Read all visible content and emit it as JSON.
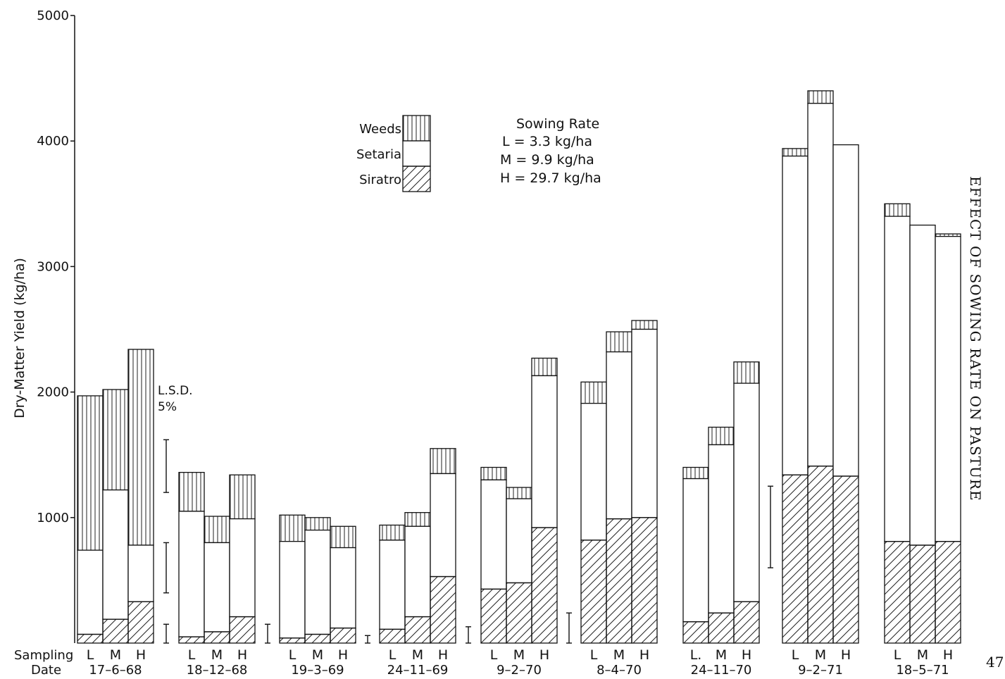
{
  "side_title": "EFFECT OF SOWING RATE ON PASTURE",
  "page_number": "47",
  "chart_data": {
    "type": "bar",
    "stacked": true,
    "ylabel": "Dry-Matter Yield (kg/ha)",
    "xlabel_line1": "Sampling",
    "xlabel_line2": "Date",
    "ylim": [
      0,
      5000
    ],
    "yticks": [
      1000,
      2000,
      3000,
      4000,
      5000
    ],
    "legend": {
      "position": "top-center",
      "entries": [
        {
          "label": "Weeds",
          "pattern": "vertical"
        },
        {
          "label": "Setaria",
          "pattern": "blank"
        },
        {
          "label": "Siratro",
          "pattern": "diagonal"
        }
      ]
    },
    "sowing_rate": {
      "title": "Sowing Rate",
      "lines": [
        "L = 3.3 kg/ha",
        "M = 9.9 kg/ha",
        "H = 29.7 kg/ha"
      ]
    },
    "lsd": {
      "label_line1": "L.S.D.",
      "label_line2": "5%"
    },
    "groups": [
      {
        "date": "17-6-68",
        "labels": [
          "L",
          "M",
          "H"
        ],
        "bars": [
          {
            "siratro": 70,
            "setaria": 740,
            "total": 1970
          },
          {
            "siratro": 190,
            "setaria": 1220,
            "total": 2020
          },
          {
            "siratro": 330,
            "setaria": 780,
            "total": 2340
          }
        ]
      },
      {
        "date": "18-12-68",
        "labels": [
          "L",
          "M",
          "H"
        ],
        "bars": [
          {
            "siratro": 50,
            "setaria": 1050,
            "total": 1360
          },
          {
            "siratro": 90,
            "setaria": 800,
            "total": 1010
          },
          {
            "siratro": 210,
            "setaria": 990,
            "total": 1340
          }
        ]
      },
      {
        "date": "19-3-69",
        "labels": [
          "L",
          "M",
          "H"
        ],
        "bars": [
          {
            "siratro": 40,
            "setaria": 810,
            "total": 1020
          },
          {
            "siratro": 70,
            "setaria": 900,
            "total": 1000
          },
          {
            "siratro": 120,
            "setaria": 760,
            "total": 930
          }
        ]
      },
      {
        "date": "24-11-69",
        "labels": [
          "L",
          "M",
          "H"
        ],
        "bars": [
          {
            "siratro": 110,
            "setaria": 820,
            "total": 940
          },
          {
            "siratro": 210,
            "setaria": 930,
            "total": 1040
          },
          {
            "siratro": 530,
            "setaria": 1350,
            "total": 1550
          }
        ]
      },
      {
        "date": "9-2-70",
        "labels": [
          "L",
          "M",
          "H"
        ],
        "bars": [
          {
            "siratro": 430,
            "setaria": 1300,
            "total": 1400
          },
          {
            "siratro": 480,
            "setaria": 1150,
            "total": 1240
          },
          {
            "siratro": 920,
            "setaria": 2130,
            "total": 2270
          }
        ]
      },
      {
        "date": "8-4-70",
        "labels": [
          "L",
          "M",
          "H"
        ],
        "bars": [
          {
            "siratro": 820,
            "setaria": 1910,
            "total": 2080
          },
          {
            "siratro": 990,
            "setaria": 2320,
            "total": 2480
          },
          {
            "siratro": 1000,
            "setaria": 2500,
            "total": 2570
          }
        ]
      },
      {
        "date": "24-11-70",
        "labels": [
          "L.",
          "M",
          "H"
        ],
        "bars": [
          {
            "siratro": 170,
            "setaria": 1310,
            "total": 1400
          },
          {
            "siratro": 240,
            "setaria": 1580,
            "total": 1720
          },
          {
            "siratro": 330,
            "setaria": 2070,
            "total": 2240
          }
        ]
      },
      {
        "date": "9-2-71",
        "labels": [
          "L",
          "M",
          "H"
        ],
        "bars": [
          {
            "siratro": 1340,
            "setaria": 3880,
            "total": 3940
          },
          {
            "siratro": 1410,
            "setaria": 4300,
            "total": 4400
          },
          {
            "siratro": 1330,
            "setaria": 3970,
            "total": 3970
          }
        ]
      },
      {
        "date": "18-5-71",
        "labels": [
          "L",
          "M",
          "H"
        ],
        "bars": [
          {
            "siratro": 810,
            "setaria": 3400,
            "total": 3500
          },
          {
            "siratro": 780,
            "setaria": 3330,
            "total": 3330
          },
          {
            "siratro": 810,
            "setaria": 3240,
            "total": 3260
          }
        ]
      }
    ],
    "lsd_bars": [
      {
        "low": 1200,
        "high": 1620
      },
      {
        "low": 400,
        "high": 800
      },
      {
        "low": 0,
        "high": 150
      },
      {
        "low": 0,
        "high": 150
      },
      {
        "low": 0,
        "high": 60
      },
      {
        "low": 0,
        "high": 130
      },
      {
        "low": 0,
        "high": 240
      },
      {
        "low": 600,
        "high": 1250
      }
    ]
  }
}
